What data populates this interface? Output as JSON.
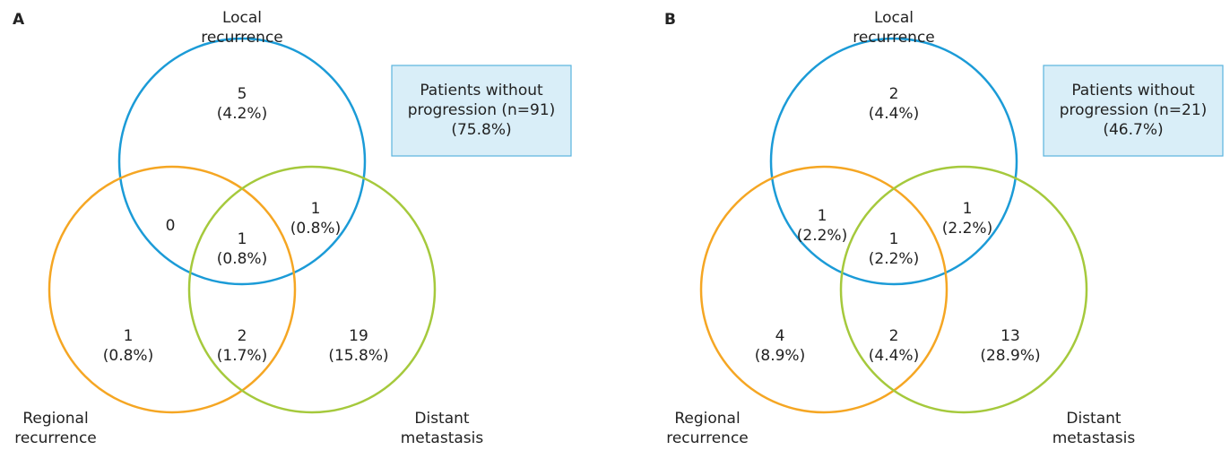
{
  "panels": [
    {
      "label": "A",
      "sets": [
        {
          "name": [
            "Local",
            "recurrence"
          ]
        },
        {
          "name": [
            "Regional",
            "recurrence"
          ]
        },
        {
          "name": [
            "Distant",
            "metastasis"
          ]
        }
      ],
      "regions": [
        {
          "count": 5,
          "percent": "(4.2%)"
        },
        {
          "count": 0
        },
        {
          "count": 1,
          "percent": "(0.8%)"
        },
        {
          "count": 1,
          "percent": "(0.8%)"
        },
        {
          "count": 1,
          "percent": "(0.8%)"
        },
        {
          "count": 2,
          "percent": "(1.7%)"
        },
        {
          "count": 19,
          "percent": "(15.8%)"
        }
      ],
      "box": [
        "Patients without",
        "progression (n=91)",
        "(75.8%)"
      ]
    },
    {
      "label": "B",
      "sets": [
        {
          "name": [
            "Local",
            "recurrence"
          ]
        },
        {
          "name": [
            "Regional",
            "recurrence"
          ]
        },
        {
          "name": [
            "Distant",
            "metastasis"
          ]
        }
      ],
      "regions": [
        {
          "count": 2,
          "percent": "(4.4%)"
        },
        {
          "count": 1,
          "percent": "(2.2%)"
        },
        {
          "count": 1,
          "percent": "(2.2%)"
        },
        {
          "count": 1,
          "percent": "(2.2%)"
        },
        {
          "count": 4,
          "percent": "(8.9%)"
        },
        {
          "count": 2,
          "percent": "(4.4%)"
        },
        {
          "count": 13,
          "percent": "(28.9%)"
        }
      ],
      "box": [
        "Patients without",
        "progression (n=21)",
        "(46.7%)"
      ]
    }
  ]
}
